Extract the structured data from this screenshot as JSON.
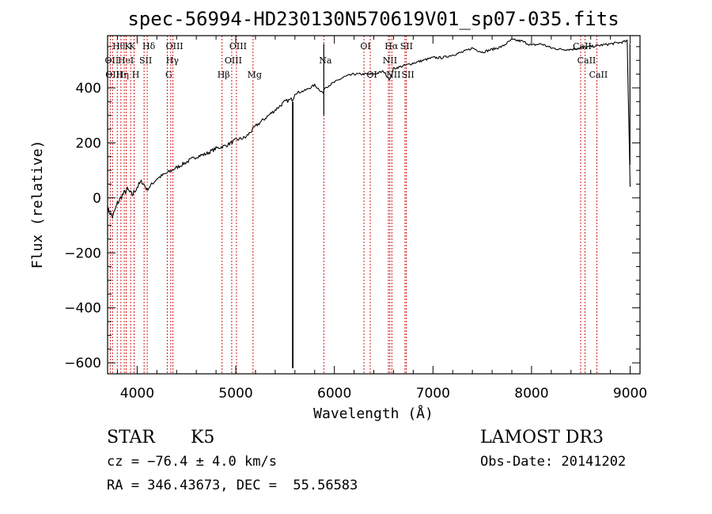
{
  "chart_data": {
    "type": "line",
    "title": "spec-56994-HD230130N570619V01_sp07-035.fits",
    "xlabel": "Wavelength (Å)",
    "ylabel": "Flux (relative)",
    "xlim": [
      3700,
      9100
    ],
    "ylim": [
      -640,
      590
    ],
    "xticks": [
      4000,
      5000,
      6000,
      7000,
      8000,
      9000
    ],
    "xtick_labels": [
      "4000",
      "5000",
      "6000",
      "7000",
      "8000",
      "9000"
    ],
    "yticks": [
      -600,
      -400,
      -200,
      0,
      200,
      400
    ],
    "ytick_labels": [
      "−600",
      "−400",
      "−200",
      "0",
      "200",
      "400"
    ],
    "series": [
      {
        "name": "spectrum",
        "color": "#000000",
        "x": [
          3700,
          3750,
          3800,
          3850,
          3900,
          3950,
          4000,
          4050,
          4100,
          4200,
          4300,
          4400,
          4500,
          4600,
          4700,
          4800,
          4900,
          5000,
          5100,
          5200,
          5300,
          5400,
          5500,
          5580,
          5600,
          5700,
          5800,
          5890,
          5900,
          6000,
          6100,
          6200,
          6300,
          6400,
          6500,
          6563,
          6600,
          6700,
          6800,
          6900,
          7000,
          7100,
          7200,
          7300,
          7400,
          7500,
          7600,
          7700,
          7800,
          7900,
          8000,
          8100,
          8200,
          8300,
          8400,
          8500,
          8600,
          8700,
          8800,
          8900,
          8970,
          9000
        ],
        "y": [
          -40,
          -70,
          -20,
          10,
          30,
          10,
          40,
          60,
          30,
          70,
          90,
          110,
          130,
          150,
          160,
          180,
          190,
          210,
          220,
          260,
          290,
          320,
          350,
          360,
          380,
          390,
          410,
          380,
          400,
          420,
          440,
          450,
          450,
          450,
          460,
          430,
          470,
          480,
          490,
          500,
          510,
          510,
          520,
          530,
          545,
          530,
          540,
          550,
          575,
          570,
          555,
          560,
          545,
          540,
          540,
          545,
          550,
          555,
          560,
          565,
          570,
          40
        ]
      }
    ],
    "spikes": [
      {
        "x": 5578,
        "y": -620
      },
      {
        "x": 5893,
        "y": 300
      },
      {
        "x": 8998,
        "y": 120
      }
    ],
    "lines_color": "#cc0000",
    "lines": [
      {
        "wl": 3727,
        "label": "OII",
        "row": 1
      },
      {
        "wl": 3750,
        "label": "OIII",
        "row": 2
      },
      {
        "wl": 3798,
        "label": "Hθ",
        "row": 0
      },
      {
        "wl": 3835,
        "label": "Hη",
        "row": 2
      },
      {
        "wl": 3869,
        "label": "HeI",
        "row": 1
      },
      {
        "wl": 3889,
        "label": "K",
        "row": 0
      },
      {
        "wl": 3934,
        "label": "K",
        "row": 0
      },
      {
        "wl": 3969,
        "label": "H",
        "row": 2
      },
      {
        "wl": 4070,
        "label": "SII",
        "row": 1
      },
      {
        "wl": 4102,
        "label": "Hδ",
        "row": 0
      },
      {
        "wl": 4305,
        "label": "G",
        "row": 2
      },
      {
        "wl": 4341,
        "label": "Hγ",
        "row": 1
      },
      {
        "wl": 4363,
        "label": "OIII",
        "row": 0
      },
      {
        "wl": 4861,
        "label": "Hβ",
        "row": 2
      },
      {
        "wl": 4959,
        "label": "OIII",
        "row": 1
      },
      {
        "wl": 5007,
        "label": "OIII",
        "row": 0
      },
      {
        "wl": 5175,
        "label": "Mg",
        "row": 2
      },
      {
        "wl": 5893,
        "label": "Na",
        "row": 1
      },
      {
        "wl": 6300,
        "label": "OI",
        "row": 0
      },
      {
        "wl": 6364,
        "label": "OI",
        "row": 2
      },
      {
        "wl": 6548,
        "label": "NII",
        "row": 1
      },
      {
        "wl": 6563,
        "label": "Hα",
        "row": 0
      },
      {
        "wl": 6583,
        "label": "NII",
        "row": 2
      },
      {
        "wl": 6716,
        "label": "SII",
        "row": 0
      },
      {
        "wl": 6730,
        "label": "SII",
        "row": 2
      },
      {
        "wl": 8498,
        "label": "CaII",
        "row": 0
      },
      {
        "wl": 8542,
        "label": "CaII",
        "row": 1
      },
      {
        "wl": 8662,
        "label": "CaII",
        "row": 2
      }
    ]
  },
  "info": {
    "object_class": "STAR",
    "subclass": "K5",
    "survey": "LAMOST DR3",
    "redshift": "cz = −76.4 ± 4.0 km/s",
    "obs_date": "Obs-Date: 20141202",
    "coords": "RA = 346.43673, DEC =  55.56583"
  }
}
